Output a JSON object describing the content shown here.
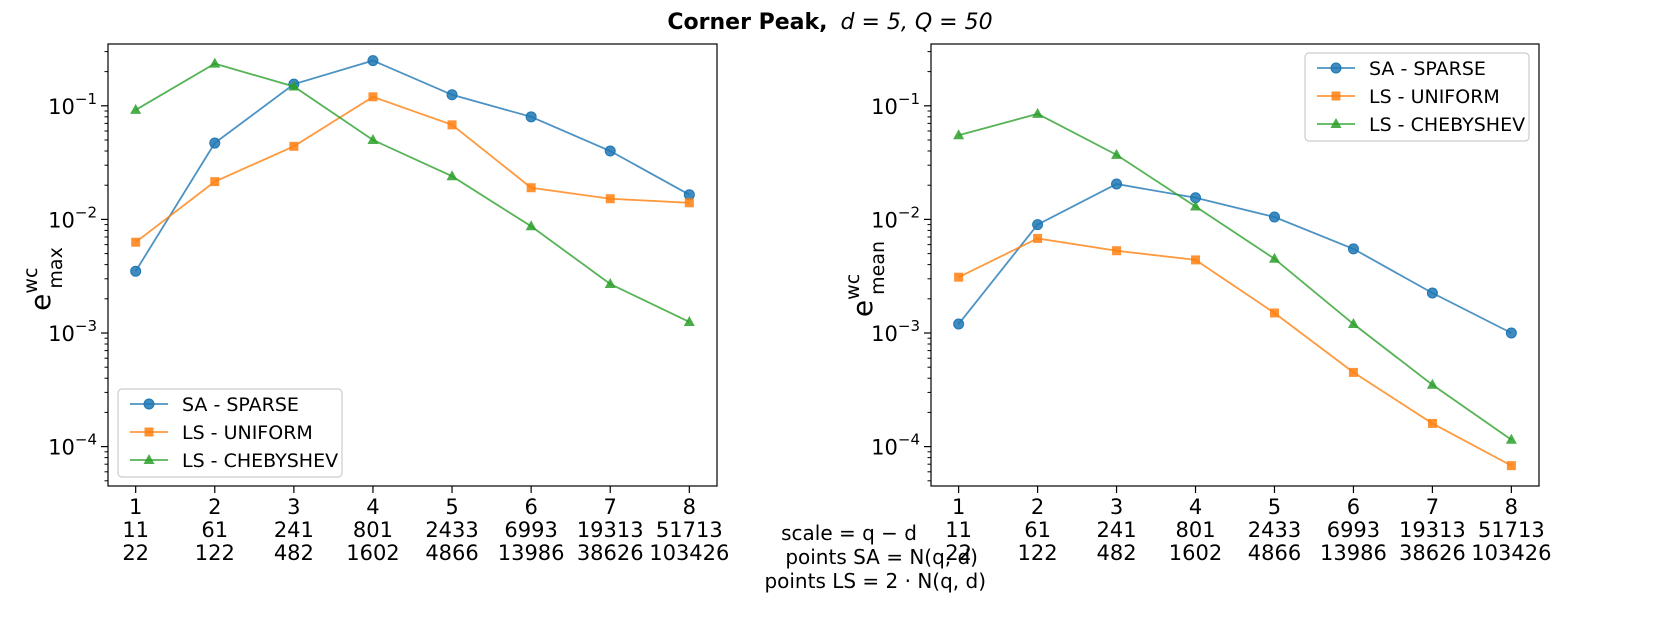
{
  "title": {
    "bold": "Corner Peak,",
    "math": "d = 5, Q = 50"
  },
  "x_labels": {
    "scale": "scale = q − d",
    "points_sa": "points SA = N(q, d)",
    "points_ls": "points LS = 2 · N(q, d)"
  },
  "tick_rows": {
    "scale": [
      "1",
      "2",
      "3",
      "4",
      "5",
      "6",
      "7",
      "8"
    ],
    "points_sa": [
      "11",
      "61",
      "241",
      "801",
      "2433",
      "6993",
      "19313",
      "51713"
    ],
    "points_ls": [
      "22",
      "122",
      "482",
      "1602",
      "4866",
      "13986",
      "38626",
      "103426"
    ]
  },
  "colors": {
    "sa": "#1f77b4",
    "uniform": "#ff7f0e",
    "chebyshev": "#2ca02c"
  },
  "chart_data": [
    {
      "type": "line",
      "yscale": "log",
      "ylabel": "e",
      "ylabel_sup": "wc",
      "ylabel_sub": "max",
      "ylim": [
        4.5e-05,
        0.35
      ],
      "yticks": [
        0.0001,
        0.001,
        0.01,
        0.1
      ],
      "ytick_labels": [
        {
          "base": "10",
          "exp": "−4"
        },
        {
          "base": "10",
          "exp": "−3"
        },
        {
          "base": "10",
          "exp": "−2"
        },
        {
          "base": "10",
          "exp": "−1"
        }
      ],
      "x": [
        1,
        2,
        3,
        4,
        5,
        6,
        7,
        8
      ],
      "xlim": [
        0.65,
        8.35
      ],
      "legend_position": "lower-left",
      "series": [
        {
          "name": "SA - SPARSE",
          "key": "sa",
          "marker": "circle",
          "values": [
            0.0035,
            0.047,
            0.155,
            0.25,
            0.125,
            0.08,
            0.04,
            0.0165
          ]
        },
        {
          "name": "LS - UNIFORM",
          "key": "uniform",
          "marker": "square",
          "values": [
            0.0063,
            0.0215,
            0.044,
            0.12,
            0.068,
            0.019,
            0.0152,
            0.014
          ]
        },
        {
          "name": "LS - CHEBYSHEV",
          "key": "chebyshev",
          "marker": "triangle",
          "values": [
            0.092,
            0.235,
            0.148,
            0.05,
            0.024,
            0.0087,
            0.0027,
            0.00125
          ]
        }
      ]
    },
    {
      "type": "line",
      "yscale": "log",
      "ylabel": "e",
      "ylabel_sup": "wc",
      "ylabel_sub": "mean",
      "ylim": [
        4.5e-05,
        0.35
      ],
      "yticks": [
        0.0001,
        0.001,
        0.01,
        0.1
      ],
      "ytick_labels": [
        {
          "base": "10",
          "exp": "−4"
        },
        {
          "base": "10",
          "exp": "−3"
        },
        {
          "base": "10",
          "exp": "−2"
        },
        {
          "base": "10",
          "exp": "−1"
        }
      ],
      "x": [
        1,
        2,
        3,
        4,
        5,
        6,
        7,
        8
      ],
      "xlim": [
        0.65,
        8.35
      ],
      "legend_position": "upper-right",
      "series": [
        {
          "name": "SA - SPARSE",
          "key": "sa",
          "marker": "circle",
          "values": [
            0.0012,
            0.009,
            0.0205,
            0.0155,
            0.0105,
            0.0055,
            0.00225,
            0.001
          ]
        },
        {
          "name": "LS - UNIFORM",
          "key": "uniform",
          "marker": "square",
          "values": [
            0.0031,
            0.0068,
            0.0053,
            0.0044,
            0.0015,
            0.00045,
            0.00016,
            6.8e-05
          ]
        },
        {
          "name": "LS - CHEBYSHEV",
          "key": "chebyshev",
          "marker": "triangle",
          "values": [
            0.055,
            0.085,
            0.037,
            0.013,
            0.0045,
            0.0012,
            0.00035,
            0.000115
          ]
        }
      ]
    }
  ]
}
